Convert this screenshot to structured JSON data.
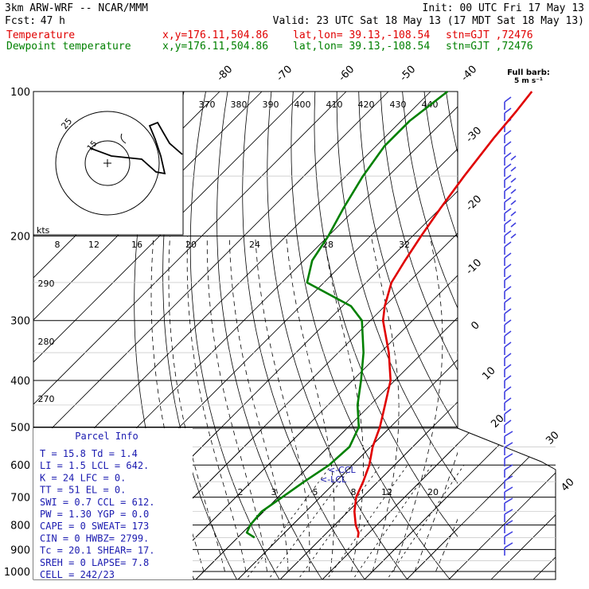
{
  "header": {
    "model": "3km ARW-WRF -- NCAR/MMM",
    "init": "Init: 00 UTC Fri 17 May 13",
    "fcst_label": "Fcst:",
    "fcst_value": "47 h",
    "valid": "Valid: 23 UTC Sat 18 May 13 (17 MDT Sat 18 May 13)"
  },
  "legend": [
    {
      "label": "Temperature",
      "xy": "x,y=176.11,504.86",
      "latlon": "lat,lon= 39.13,-108.54",
      "stn": "stn=GJT ,72476",
      "color": "#e00000"
    },
    {
      "label": "Dewpoint temperature",
      "xy": "x,y=176.11,504.86",
      "latlon": "lat,lon= 39.13,-108.54",
      "stn": "stn=GJT ,72476",
      "color": "#008000"
    }
  ],
  "chart_data": {
    "type": "line",
    "diagram": "skew-T log-p",
    "y_axis": {
      "label": "pressure (hPa)",
      "scale": "log",
      "ticks": [
        100,
        200,
        300,
        400,
        500,
        600,
        700,
        800,
        900,
        1000
      ]
    },
    "isotherm_labels": [
      "-80",
      "-70",
      "-60",
      "-50",
      "-40",
      "-30",
      "-20",
      "-10",
      "0",
      "10",
      "20",
      "30",
      "40"
    ],
    "theta_labels": [
      "370",
      "380",
      "390",
      "400",
      "410",
      "420",
      "430",
      "440"
    ],
    "theta_side_labels": [
      "290",
      "280",
      "270"
    ],
    "mixing_ratio_upper": [
      "8",
      "12",
      "16",
      "20",
      "24",
      "28",
      "32"
    ],
    "mixing_ratio_lower": [
      "2",
      "3",
      "5",
      "8",
      "12",
      "20"
    ],
    "series": [
      {
        "name": "Temperature",
        "color": "#e00000",
        "points": [
          [
            850,
            8.5
          ],
          [
            830,
            7.5
          ],
          [
            800,
            5
          ],
          [
            750,
            1.5
          ],
          [
            700,
            -1.5
          ],
          [
            650,
            -3.5
          ],
          [
            600,
            -6
          ],
          [
            550,
            -9.5
          ],
          [
            500,
            -12.5
          ],
          [
            450,
            -16.5
          ],
          [
            400,
            -21
          ],
          [
            350,
            -28
          ],
          [
            300,
            -37
          ],
          [
            280,
            -40
          ],
          [
            250,
            -44
          ],
          [
            225,
            -46
          ],
          [
            200,
            -48
          ],
          [
            175,
            -50
          ],
          [
            150,
            -52
          ],
          [
            125,
            -54
          ],
          [
            110,
            -55
          ],
          [
            100,
            -56
          ]
        ]
      },
      {
        "name": "Dewpoint temperature",
        "color": "#008000",
        "points": [
          [
            850,
            -16
          ],
          [
            830,
            -19
          ],
          [
            800,
            -20
          ],
          [
            750,
            -20.5
          ],
          [
            700,
            -19
          ],
          [
            650,
            -17.5
          ],
          [
            600,
            -15.5
          ],
          [
            550,
            -15
          ],
          [
            500,
            -17.5
          ],
          [
            450,
            -23
          ],
          [
            400,
            -28
          ],
          [
            350,
            -34
          ],
          [
            300,
            -42
          ],
          [
            280,
            -48
          ],
          [
            250,
            -64
          ],
          [
            225,
            -68
          ],
          [
            200,
            -70
          ],
          [
            175,
            -73
          ],
          [
            150,
            -76
          ],
          [
            130,
            -78
          ],
          [
            115,
            -78
          ],
          [
            100,
            -76
          ]
        ]
      }
    ],
    "lcl_labels": [
      "<-CCL",
      "<-LCL"
    ]
  },
  "hodograph": {
    "ring_labels": [
      "25",
      "15"
    ],
    "units": "kts"
  },
  "barbs": {
    "title": "Full barb:",
    "subtitle": "5 m s⁻¹"
  },
  "parcel_info": {
    "title": "Parcel Info",
    "rows": [
      "T    =   15.8  Td =   1.4",
      "LI   =    1.5  LCL =  642.",
      "K    =     24  LFC =    0.",
      "TT   =     51  EL  =    0.",
      "SWI  =    0.7  CCL =  612.",
      "PW   =   1.30  YGP =   0.0",
      "CAPE =      0  SWEAT=  173",
      "CIN  =      0  HWBZ= 2799.",
      "Tc   =   20.1  SHEAR=   17.",
      "SREH =      0  LAPSE=   7.8",
      "CELL = 242/23"
    ]
  }
}
